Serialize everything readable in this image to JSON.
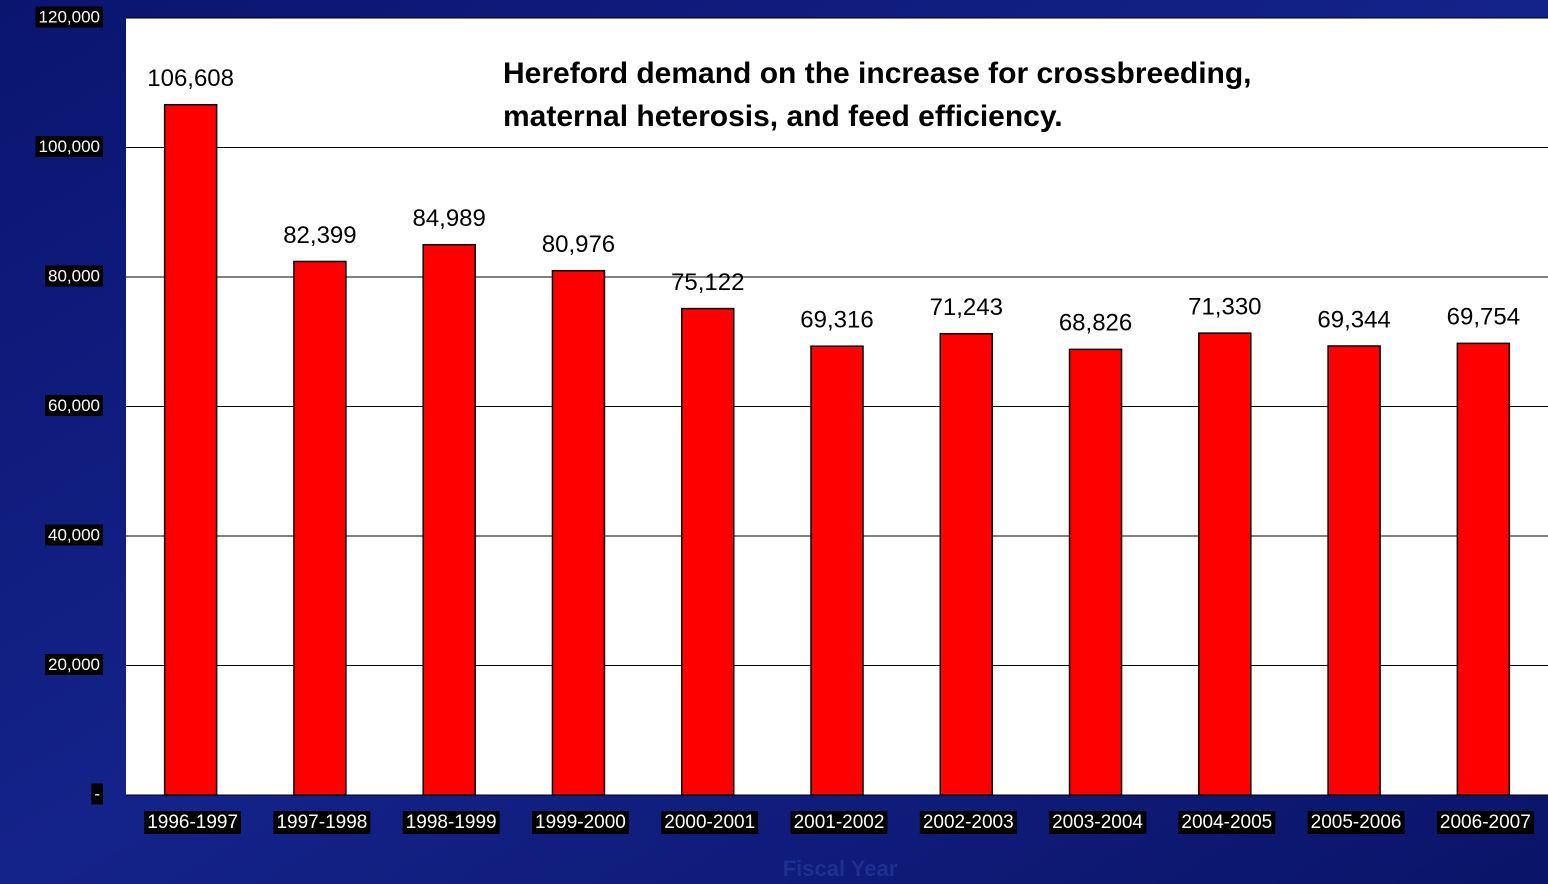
{
  "chart_data": {
    "type": "bar",
    "title": [
      "Hereford demand on the increase for crossbreeding,",
      "maternal heterosis, and feed efficiency."
    ],
    "x_label": "Fiscal Year",
    "categories": [
      "1996-1997",
      "1997-1998",
      "1998-1999",
      "1999-2000",
      "2000-2001",
      "2001-2002",
      "2002-2003",
      "2003-2004",
      "2004-2005",
      "2005-2006",
      "2006-2007"
    ],
    "values": [
      106608,
      82399,
      84989,
      80976,
      75122,
      69316,
      71243,
      68826,
      71330,
      69344,
      69754
    ],
    "value_labels": [
      "106,608",
      "82,399",
      "84,989",
      "80,976",
      "75,122",
      "69,316",
      "71,243",
      "68,826",
      "71,330",
      "69,344",
      "69,754"
    ],
    "color": "#ff0000",
    "ylim": [
      0,
      120000
    ],
    "yticks": [
      {
        "value": 0,
        "label": "-"
      },
      {
        "value": 20000,
        "label": "20,000"
      },
      {
        "value": 40000,
        "label": "40,000"
      },
      {
        "value": 60000,
        "label": "60,000"
      },
      {
        "value": 80000,
        "label": "80,000"
      },
      {
        "value": 100000,
        "label": "100,000"
      },
      {
        "value": 120000,
        "label": "120,000"
      }
    ],
    "grid": true
  }
}
